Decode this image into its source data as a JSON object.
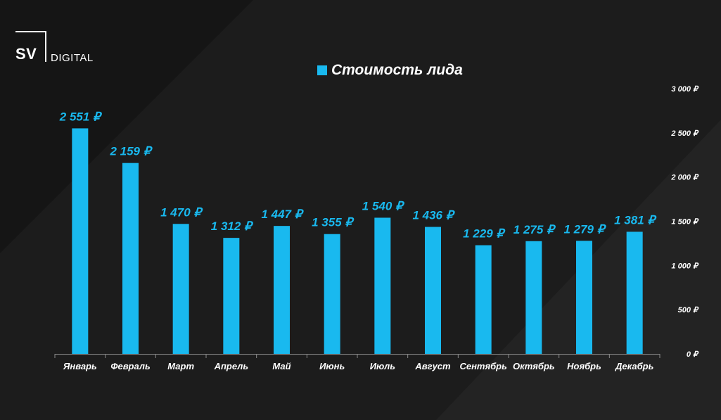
{
  "brand": {
    "logo_sv": "SV",
    "logo_digital": "DIGITAL"
  },
  "chart_data": {
    "type": "bar",
    "legend": "Стоимость лида",
    "legend_position": "top-center",
    "categories": [
      "Январь",
      "Февраль",
      "Март",
      "Апрель",
      "Май",
      "Июнь",
      "Июль",
      "Август",
      "Сентябрь",
      "Октябрь",
      "Ноябрь",
      "Декабрь"
    ],
    "values": [
      2551,
      2159,
      1470,
      1312,
      1447,
      1355,
      1540,
      1436,
      1229,
      1275,
      1279,
      1381
    ],
    "data_labels": [
      "2 551 ₽",
      "2 159 ₽",
      "1 470 ₽",
      "1 312 ₽",
      "1 447 ₽",
      "1 355 ₽",
      "1 540 ₽",
      "1 436 ₽",
      "1 229 ₽",
      "1 275 ₽",
      "1 279 ₽",
      "1 381 ₽"
    ],
    "y_ticks": [
      0,
      500,
      1000,
      1500,
      2000,
      2500,
      3000
    ],
    "y_tick_labels": [
      "0 ₽",
      "500 ₽",
      "1 000 ₽",
      "1 500 ₽",
      "2 000 ₽",
      "2 500 ₽",
      "3 000 ₽"
    ],
    "ylim": [
      0,
      3000
    ],
    "y_axis_side": "right",
    "grid": false,
    "bar_color": "#19b9ef",
    "text_color": "#ffffff",
    "background_color": "#1c1c1c"
  }
}
